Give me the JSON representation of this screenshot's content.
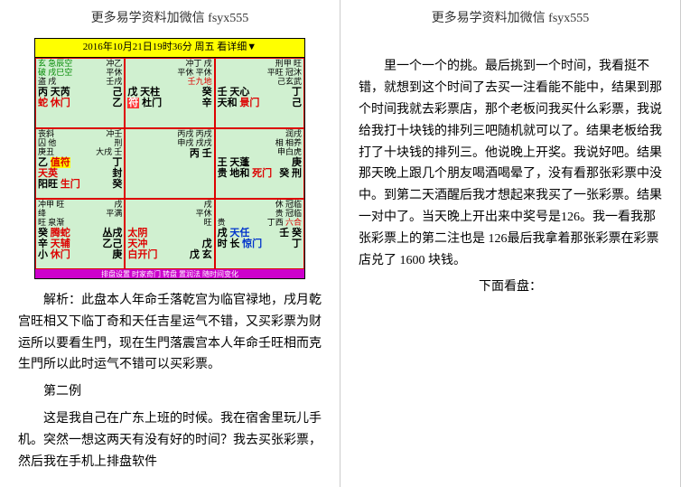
{
  "header_text": "更多易学资料加微信 fsyx555",
  "chart": {
    "title": "2016年10月21日19时36分 周五 看详细▼",
    "cells": [
      {
        "lines": [
          {
            "l": "玄 急辰空",
            "r": "冲乙",
            "cls_l": "green",
            "cls_r": ""
          },
          {
            "l": "破 戌巳空",
            "r": "平休",
            "cls_l": "green",
            "cls_r": ""
          },
          {
            "l": "盗 戌",
            "r": "壬戌",
            "cls_l": "",
            "cls_r": ""
          },
          {
            "big_l": "丙 天芮",
            "big_m": "己",
            "r": "",
            "cls_bl": "",
            "cls_bm": ""
          },
          {
            "big_l": "蛇 休门",
            "big_m": "乙",
            "r": "⚬",
            "cls_bl": "red",
            "cls_bm": ""
          }
        ]
      },
      {
        "lines": [
          {
            "l": "",
            "r": "冲丁 戌",
            "cls_l": "",
            "cls_r": ""
          },
          {
            "l": "",
            "r": "平休 平休",
            "cls_l": "",
            "cls_r": ""
          },
          {
            "l": "",
            "r": "壬九地",
            "cls_l": "",
            "cls_r": "red"
          },
          {
            "big_l": "戊 天柱",
            "big_m": "癸",
            "r": "",
            "cls_bl": "",
            "cls_bm": ""
          },
          {
            "big_l": "<span class='bg-red'>符</span> 杜门",
            "big_m": "辛",
            "r": "",
            "cls_bl": "",
            "cls_bm": ""
          }
        ]
      },
      {
        "lines": [
          {
            "l": "",
            "r": "刑甲 旺",
            "cls_l": "",
            "cls_r": ""
          },
          {
            "l": "",
            "r": "平旺 冠沐",
            "cls_l": "",
            "cls_r": ""
          },
          {
            "l": "",
            "r": "己玄武",
            "cls_l": "",
            "cls_r": ""
          },
          {
            "big_l": "壬 天心",
            "big_m": "丁",
            "r": "",
            "cls_bl": "",
            "cls_bm": ""
          },
          {
            "big_l": "天和 <span class='red'>景门</span>",
            "big_m": "己",
            "r": "",
            "cls_bl": "",
            "cls_bm": ""
          }
        ]
      },
      {
        "lines": [
          {
            "l": "丧斜",
            "r": "冲壬",
            "cls_l": "",
            "cls_r": ""
          },
          {
            "l": "囚 他",
            "r": "刑",
            "cls_l": "",
            "cls_r": ""
          },
          {
            "l": "庚丑",
            "r": "大戌 壬",
            "cls_l": "",
            "cls_r": ""
          },
          {
            "big_l": "乙 <span class='hl-yellow red'>值符</span>",
            "big_m": "丁",
            "r": "",
            "cls_bl": "",
            "cls_bm": ""
          },
          {
            "big_l": "<span class='red'>天英</span>",
            "big_m": "封",
            "r": "",
            "cls_bl": "",
            "cls_bm": ""
          },
          {
            "big_l": "阳旺 <span class='red'>生门</span>",
            "big_m": "癸",
            "r": "",
            "cls_bl": "",
            "cls_bm": ""
          }
        ]
      },
      {
        "lines": [
          {
            "l": "",
            "r": "丙戌 丙戌",
            "cls_l": "",
            "cls_r": ""
          },
          {
            "l": "",
            "r": "申戌 戌戌",
            "cls_l": "",
            "cls_r": ""
          },
          {
            "l": "",
            "r": "",
            "cls_l": "",
            "cls_r": ""
          },
          {
            "big_l": "",
            "big_m": "",
            "r": "",
            "cls_bl": "",
            "cls_bm": ""
          },
          {
            "big_l": "",
            "big_m": "丙 壬",
            "r": "",
            "cls_bl": "",
            "cls_bm": ""
          }
        ]
      },
      {
        "lines": [
          {
            "l": "",
            "r": "润戌",
            "cls_l": "",
            "cls_r": ""
          },
          {
            "l": "",
            "r": "相 相养",
            "cls_l": "",
            "cls_r": ""
          },
          {
            "l": "",
            "r": "申白虎",
            "cls_l": "",
            "cls_r": ""
          },
          {
            "big_l": "王 天蓬",
            "big_m": "庚",
            "r": "",
            "cls_bl": "",
            "cls_bm": ""
          },
          {
            "big_l": "贵 地和 <span class='red'>死门</span>",
            "big_m": "癸 刑",
            "r": "",
            "cls_bl": "",
            "cls_bm": ""
          }
        ]
      },
      {
        "lines": [
          {
            "l": "冲甲 旺 ",
            "r": "戌",
            "cls_l": "",
            "cls_r": ""
          },
          {
            "l": "绛 ",
            "r": "平满",
            "cls_l": "",
            "cls_r": ""
          },
          {
            "l": "旺 泉渐",
            "r": "",
            "cls_l": "",
            "cls_r": ""
          },
          {
            "big_l": "癸 <span class='red'>腾蛇</span>",
            "big_m": "丛戌",
            "r": "",
            "cls_bl": "",
            "cls_bm": ""
          },
          {
            "big_l": "辛 <span class='red'>天辅</span>",
            "big_m": "乙己",
            "r": "",
            "cls_bl": "",
            "cls_bm": ""
          },
          {
            "big_l": "小 <span class='red'>休门</span>",
            "big_m": "庚",
            "r": "",
            "cls_bl": "",
            "cls_bm": ""
          }
        ]
      },
      {
        "lines": [
          {
            "l": "",
            "r": "戌",
            "cls_l": "",
            "cls_r": ""
          },
          {
            "l": "",
            "r": "平休",
            "cls_l": "",
            "cls_r": ""
          },
          {
            "l": "",
            "r": "旺",
            "cls_l": "",
            "cls_r": ""
          },
          {
            "big_l": "<span class='red'>太阴</span>",
            "big_m": "",
            "r": "",
            "cls_bl": "",
            "cls_bm": ""
          },
          {
            "big_l": "<span class='red'>天冲</span>",
            "big_m": "戊",
            "r": "",
            "cls_bl": "",
            "cls_bm": ""
          },
          {
            "big_l": "<span class='red'>白开门</span>",
            "big_m": "戊 玄",
            "r": "",
            "cls_bl": "",
            "cls_bm": ""
          }
        ]
      },
      {
        "lines": [
          {
            "l": "",
            "r": "休 冠临",
            "cls_l": "",
            "cls_r": ""
          },
          {
            "l": "",
            "r": "贵 冠临",
            "cls_l": "",
            "cls_r": ""
          },
          {
            "l": "贵",
            "r": "丁西 <span class='red'>六合</span>",
            "cls_l": "",
            "cls_r": ""
          },
          {
            "big_l": "戌 <span class='blue'>天任</span>",
            "big_m": "壬 癸",
            "r": "",
            "cls_bl": "",
            "cls_bm": ""
          },
          {
            "big_l": "时 长 <span class='blue'>惊门</span>",
            "big_m": "丁",
            "r": "",
            "cls_bl": "",
            "cls_bm": ""
          }
        ]
      }
    ],
    "footer": "排盘设置 时家奇门 转盘 置润法 随时间变化"
  },
  "left_p1": "解析：此盘本人年命壬落乾宫为临官禄地，戌月乾宫旺相又下临丁奇和天任吉星运气不错，又买彩票为财运所以要看生門，现在生門落震宫本人年命壬旺相而克生門所以此时运气不错可以买彩票。",
  "left_p2": "第二例",
  "left_p3": "这是我自己在广东上班的时候。我在宿舍里玩儿手机。突然一想这两天有没有好的时间？我去买张彩票，然后我在手机上排盘软件",
  "right_p1": "里一个一个的挑。最后挑到一个时间，我看挺不错，就想到这个时间了去买一注看能不能中，结果到那个时间我就去彩票店，那个老板问我买什么彩票，我说给我打十块钱的排列三吧随机就可以了。结果老板给我打了十块钱的排列三。他说晚上开奖。我说好吧。结果那天晚上跟几个朋友喝酒喝晕了，没有看那张彩票中没中。到第二天酒醒后我才想起来我买了一张彩票。结果一对中了。当天晚上开出来中奖号是126。我一看我那张彩票上的第二注也是 126最后我拿着那张彩票在彩票店兑了 1600 块钱。",
  "right_p2": "下面看盘："
}
